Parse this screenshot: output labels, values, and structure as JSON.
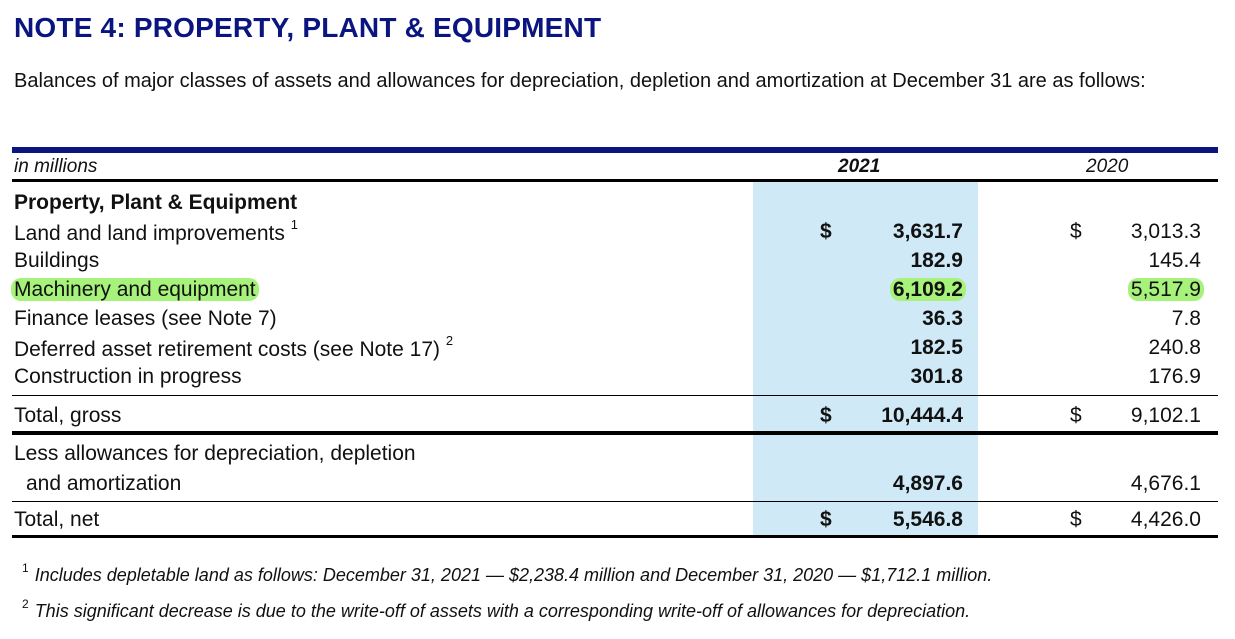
{
  "title": "NOTE 4: PROPERTY, PLANT & EQUIPMENT",
  "intro": "Balances of major classes of assets and allowances for depreciation, depletion and amortization at December 31 are as follows:",
  "header": {
    "unit": "in millions",
    "year_2021": "2021",
    "year_2020": "2020"
  },
  "section_title": "Property, Plant & Equipment",
  "rows": [
    {
      "label": "Land and land improvements",
      "sup": "1",
      "cur21": "$",
      "v21": "3,631.7",
      "cur20": "$",
      "v20": "3,013.3"
    },
    {
      "label": "Buildings",
      "sup": "",
      "cur21": "",
      "v21": "182.9",
      "cur20": "",
      "v20": "145.4"
    },
    {
      "label": "Machinery and equipment",
      "sup": "",
      "cur21": "",
      "v21": "6,109.2",
      "cur20": "",
      "v20": "5,517.9"
    },
    {
      "label": "Finance leases (see Note 7)",
      "sup": "",
      "cur21": "",
      "v21": "36.3",
      "cur20": "",
      "v20": "7.8"
    },
    {
      "label": "Deferred asset retirement costs (see Note 17)",
      "sup": "2",
      "cur21": "",
      "v21": "182.5",
      "cur20": "",
      "v20": "240.8"
    },
    {
      "label": "Construction in progress",
      "sup": "",
      "cur21": "",
      "v21": "301.8",
      "cur20": "",
      "v20": "176.9"
    }
  ],
  "total_gross": {
    "label": "Total, gross",
    "cur21": "$",
    "v21": "10,444.4",
    "cur20": "$",
    "v20": "9,102.1"
  },
  "allowances": {
    "label_line1": "Less allowances for depreciation, depletion",
    "label_line2": "and amortization",
    "v21": "4,897.6",
    "v20": "4,676.1"
  },
  "total_net": {
    "label": "Total, net",
    "cur21": "$",
    "v21": "5,546.8",
    "cur20": "$",
    "v20": "4,426.0"
  },
  "footnotes": [
    {
      "num": "1",
      "text": "Includes depletable land as follows: December 31, 2021 — $2,238.4 million and December 31, 2020 — $1,712.1 million."
    },
    {
      "num": "2",
      "text": "This significant decrease is due to the write-off of assets with a corresponding write-off of allowances for depreciation."
    }
  ],
  "colors": {
    "title": "#0a1580",
    "column_highlight": "#cfe9f7",
    "marker_highlight": "#a6f27a"
  }
}
